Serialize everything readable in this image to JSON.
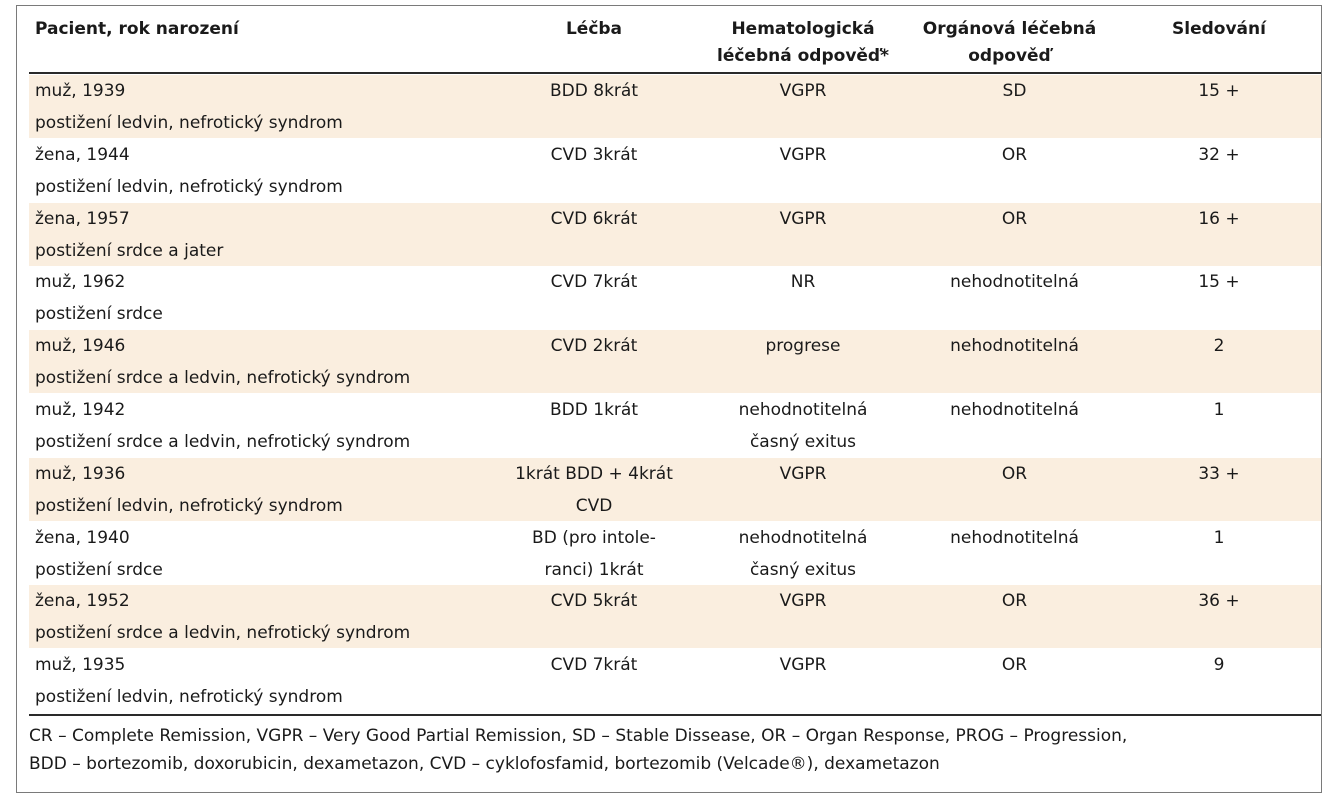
{
  "headers": {
    "patient": "Pacient, rok narození",
    "treatment": "Léčba",
    "hematologic": [
      "Hematologická",
      "léčebná odpověď*"
    ],
    "organ": [
      "Orgánová léčebná",
      "odpověď"
    ],
    "followup": "Sledování"
  },
  "rows": [
    {
      "patient": "muž, 1939",
      "organ_site": "postižení ledvin, nefrotický syndrom",
      "treatment": [
        "BDD 8krát"
      ],
      "hematologic": [
        "VGPR"
      ],
      "organ_response": "SD",
      "followup": "15 +"
    },
    {
      "patient": "žena, 1944",
      "organ_site": "postižení ledvin, nefrotický syndrom",
      "treatment": [
        "CVD 3krát"
      ],
      "hematologic": [
        "VGPR"
      ],
      "organ_response": "OR",
      "followup": "32 +"
    },
    {
      "patient": "žena, 1957",
      "organ_site": "postižení srdce a jater",
      "treatment": [
        "CVD 6krát"
      ],
      "hematologic": [
        "VGPR"
      ],
      "organ_response": "OR",
      "followup": "16 +"
    },
    {
      "patient": "muž, 1962",
      "organ_site": "postižení srdce",
      "treatment": [
        "CVD 7krát"
      ],
      "hematologic": [
        "NR"
      ],
      "organ_response": "nehodnotitelná",
      "followup": "15 +"
    },
    {
      "patient": "muž, 1946",
      "organ_site": "postižení srdce a ledvin, nefrotický syndrom",
      "treatment": [
        "CVD 2krát"
      ],
      "hematologic": [
        "progrese"
      ],
      "organ_response": "nehodnotitelná",
      "followup": "2"
    },
    {
      "patient": "muž, 1942",
      "organ_site": "postižení srdce a ledvin, nefrotický syndrom",
      "treatment": [
        "BDD 1krát"
      ],
      "hematologic": [
        "nehodnotitelná",
        "časný exitus"
      ],
      "organ_response": "nehodnotitelná",
      "followup": "1"
    },
    {
      "patient": "muž, 1936",
      "organ_site": "postižení ledvin, nefrotický syndrom",
      "treatment": [
        "1krát BDD + 4krát",
        "CVD"
      ],
      "hematologic": [
        "VGPR"
      ],
      "organ_response": "OR",
      "followup": "33 +"
    },
    {
      "patient": "žena, 1940",
      "organ_site": "postižení srdce",
      "treatment": [
        "BD (pro intole-",
        "ranci) 1krát"
      ],
      "hematologic": [
        "nehodnotitelná",
        "časný exitus"
      ],
      "organ_response": "nehodnotitelná",
      "followup": "1"
    },
    {
      "patient": "žena, 1952",
      "organ_site": "postižení srdce a ledvin, nefrotický syndrom",
      "treatment": [
        "CVD 5krát"
      ],
      "hematologic": [
        "VGPR"
      ],
      "organ_response": "OR",
      "followup": "36 +"
    },
    {
      "patient": "muž, 1935",
      "organ_site": "postižení ledvin, nefrotický syndrom",
      "treatment": [
        "CVD 7krát"
      ],
      "hematologic": [
        "VGPR"
      ],
      "organ_response": "OR",
      "followup": "9"
    }
  ],
  "footnote": [
    "CR – Complete Remission, VGPR – Very Good Partial Remission, SD – Stable Dissease, OR – Organ Response, PROG – Progression,",
    "BDD – bortezomib, doxorubicin, dexametazon, CVD – cyklofosfamid, bortezomib (Velcade®), dexametazon"
  ],
  "colors": {
    "shade": "#faeedf",
    "rule": "#2a2a2a",
    "border": "#7a7a7a"
  }
}
